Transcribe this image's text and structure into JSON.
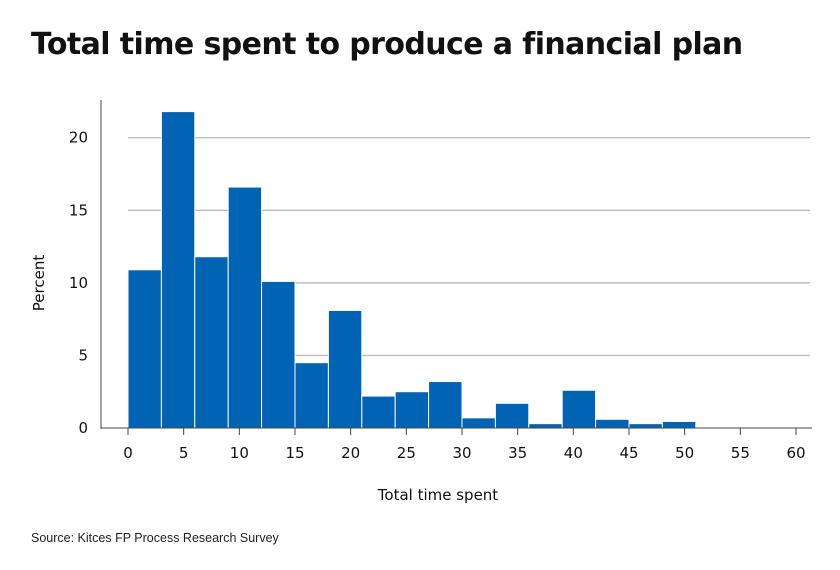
{
  "title": "Total time spent to produce a financial plan",
  "source": "Source: Kitces FP Process Research Survey",
  "chart_data": {
    "type": "bar",
    "title": "Total time spent to produce a financial plan",
    "xlabel": "Total time spent",
    "ylabel": "Percent",
    "bin_edges": [
      0,
      3,
      6,
      9,
      12,
      15,
      18,
      21,
      24,
      27,
      30,
      33,
      36,
      39,
      42,
      45,
      48,
      51,
      54,
      57,
      60
    ],
    "values": [
      10.9,
      21.8,
      11.8,
      16.6,
      10.1,
      4.5,
      8.1,
      2.2,
      2.5,
      3.2,
      0.7,
      1.7,
      0.3,
      2.6,
      0.6,
      0.3,
      0.45,
      0.05,
      0.0,
      0.05
    ],
    "xticks": [
      0,
      5,
      10,
      15,
      20,
      25,
      30,
      35,
      40,
      45,
      50,
      55,
      60
    ],
    "yticks": [
      0,
      5,
      10,
      15,
      20
    ],
    "xlim": [
      0,
      60
    ],
    "ylim": [
      0,
      22.6
    ],
    "grid": "horizontal",
    "bar_color": "#0063b4",
    "legend": null
  }
}
